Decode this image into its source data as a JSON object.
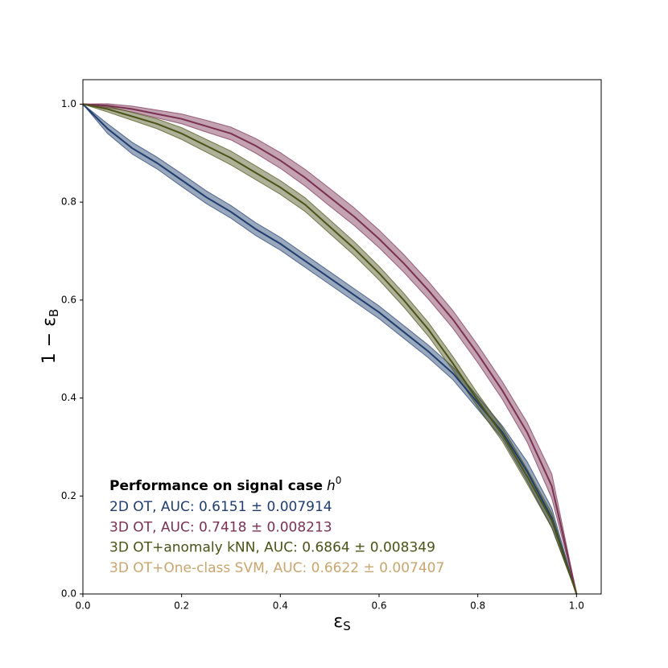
{
  "chart_data": {
    "type": "line",
    "xlabel": {
      "symbol": "ε",
      "subscript": "S"
    },
    "ylabel": {
      "symbol": "1 − ε",
      "subscript": "B"
    },
    "legend_title": {
      "text": "Performance on signal case",
      "symbol": "h",
      "superscript": "0"
    },
    "x": [
      0,
      0.05,
      0.1,
      0.15,
      0.2,
      0.25,
      0.3,
      0.35,
      0.4,
      0.45,
      0.5,
      0.55,
      0.6,
      0.65,
      0.7,
      0.75,
      0.8,
      0.85,
      0.9,
      0.95,
      1.0
    ],
    "series": [
      {
        "name": "2D OT, AUC: 0.6151 ± 0.007914",
        "color": "#1f3d6e",
        "values": [
          1.0,
          0.95,
          0.91,
          0.88,
          0.845,
          0.81,
          0.78,
          0.745,
          0.715,
          0.68,
          0.645,
          0.61,
          0.575,
          0.535,
          0.495,
          0.45,
          0.39,
          0.33,
          0.25,
          0.155,
          0.0
        ],
        "errors": [
          0,
          0.01,
          0.012,
          0.012,
          0.013,
          0.013,
          0.013,
          0.013,
          0.013,
          0.013,
          0.013,
          0.013,
          0.013,
          0.013,
          0.013,
          0.013,
          0.013,
          0.013,
          0.02,
          0.02,
          0
        ]
      },
      {
        "name": "3D OT, AUC: 0.7418 ± 0.008213",
        "color": "#7a3152",
        "values": [
          1.0,
          0.997,
          0.99,
          0.98,
          0.97,
          0.955,
          0.94,
          0.915,
          0.885,
          0.85,
          0.81,
          0.77,
          0.725,
          0.675,
          0.62,
          0.56,
          0.49,
          0.415,
          0.33,
          0.22,
          0.0
        ],
        "errors": [
          0,
          0.004,
          0.006,
          0.008,
          0.01,
          0.012,
          0.013,
          0.015,
          0.016,
          0.017,
          0.018,
          0.018,
          0.018,
          0.018,
          0.018,
          0.018,
          0.018,
          0.018,
          0.02,
          0.025,
          0
        ]
      },
      {
        "name": "3D OT+anomaly kNN, AUC: 0.6864 ± 0.008349",
        "color": "#4b5318",
        "values": [
          1.0,
          0.99,
          0.975,
          0.96,
          0.94,
          0.915,
          0.89,
          0.86,
          0.83,
          0.795,
          0.75,
          0.705,
          0.655,
          0.6,
          0.54,
          0.47,
          0.395,
          0.325,
          0.24,
          0.15,
          0.0
        ],
        "errors": [
          0,
          0.006,
          0.008,
          0.01,
          0.012,
          0.013,
          0.014,
          0.014,
          0.014,
          0.014,
          0.014,
          0.014,
          0.014,
          0.014,
          0.014,
          0.014,
          0.014,
          0.014,
          0.015,
          0.015,
          0
        ]
      }
    ],
    "legend_extra": [
      {
        "name": "3D OT+One-class SVM, AUC: 0.6622 ± 0.007407",
        "color": "#c9a56f"
      }
    ],
    "xlim": [
      0,
      1.05
    ],
    "ylim": [
      0,
      1.05
    ],
    "xticks": [
      {
        "value": 0,
        "label": "0.0"
      },
      0.2,
      0.4,
      0.6,
      0.8,
      {
        "value": 1,
        "label": "1.0"
      }
    ],
    "yticks": [
      {
        "value": 0,
        "label": "0.0"
      },
      0.2,
      0.4,
      0.6,
      0.8,
      {
        "value": 1,
        "label": "1.0"
      }
    ]
  }
}
